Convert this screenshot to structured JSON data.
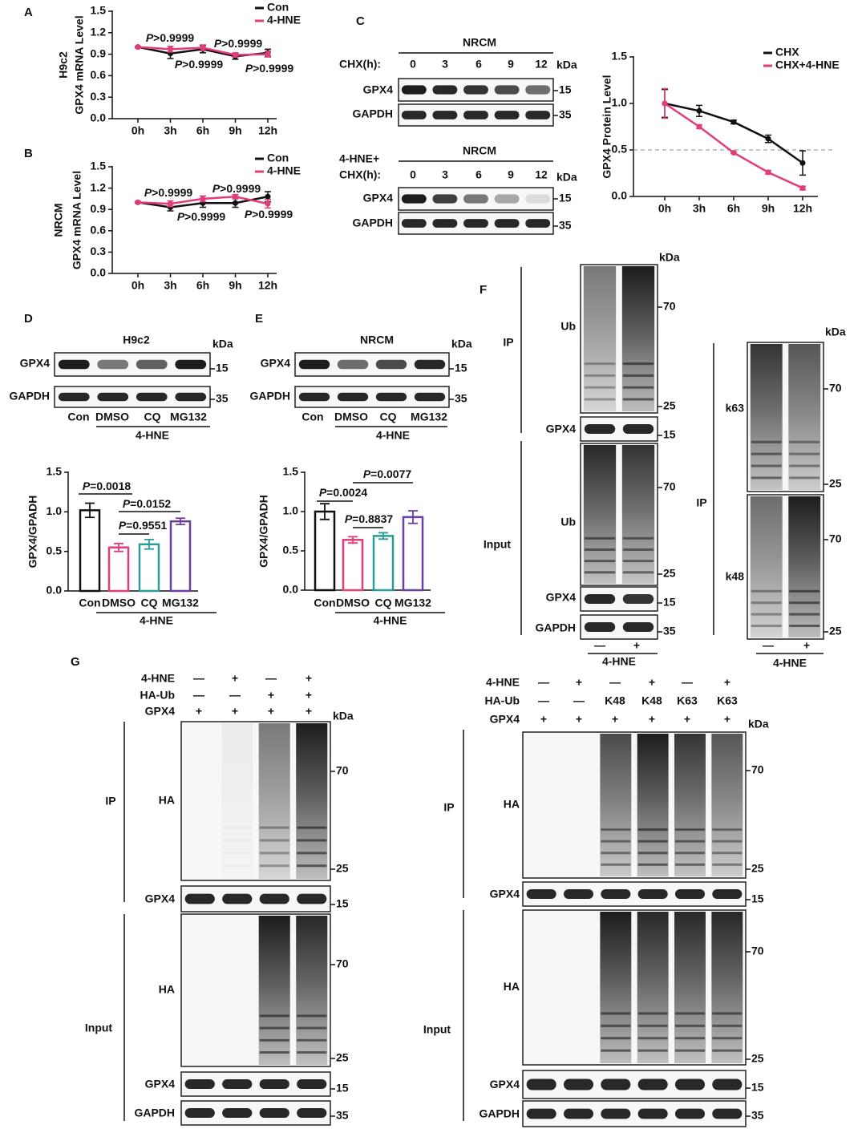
{
  "chart_data": [
    {
      "type": "line",
      "panel": "A",
      "ylabel": [
        "H9c2",
        "GPX4 mRNA Level"
      ],
      "categories": [
        "0h",
        "3h",
        "6h",
        "9h",
        "12h"
      ],
      "series": [
        {
          "name": "Con",
          "color": "#111111",
          "values": [
            1.0,
            0.91,
            0.97,
            0.87,
            0.92
          ],
          "errors": [
            0.01,
            0.07,
            0.05,
            0.04,
            0.05
          ]
        },
        {
          "name": "4-HNE",
          "color": "#e23c7b",
          "values": [
            1.0,
            0.97,
            0.99,
            0.89,
            0.9
          ],
          "errors": [
            0.01,
            0.04,
            0.04,
            0.03,
            0.04
          ]
        }
      ],
      "ylim": [
        0,
        1.5
      ],
      "yticks": [
        {
          "value": 0,
          "label": "0.0"
        },
        0.3,
        0.6,
        0.9,
        1.2,
        1.5
      ],
      "annotations": [
        "P>0.9999",
        "P>0.9999",
        "P>0.9999",
        "P>0.9999"
      ]
    },
    {
      "type": "line",
      "panel": "B",
      "ylabel": [
        "NRCM",
        "GPX4 mRNA Level"
      ],
      "categories": [
        "0h",
        "3h",
        "6h",
        "9h",
        "12h"
      ],
      "series": [
        {
          "name": "Con",
          "color": "#111111",
          "values": [
            1.0,
            0.93,
            0.99,
            0.99,
            1.08
          ],
          "errors": [
            0.01,
            0.05,
            0.06,
            0.06,
            0.07
          ]
        },
        {
          "name": "4-HNE",
          "color": "#e23c7b",
          "values": [
            1.0,
            0.98,
            1.05,
            1.08,
            0.98
          ],
          "errors": [
            0.01,
            0.04,
            0.04,
            0.03,
            0.06
          ]
        }
      ],
      "ylim": [
        0,
        1.5
      ],
      "yticks": [
        {
          "value": 0,
          "label": "0.0"
        },
        0.3,
        0.6,
        0.9,
        1.2,
        1.5
      ],
      "annotations": [
        "P>0.9999",
        "P>0.9999",
        "P>0.9999",
        "P>0.9999"
      ]
    },
    {
      "type": "line",
      "ylabel": [
        "GPX4 Protein Level"
      ],
      "categories": [
        "0h",
        "3h",
        "6h",
        "9h",
        "12h"
      ],
      "series": [
        {
          "name": "CHX",
          "color": "#111111",
          "values": [
            1.0,
            0.92,
            0.8,
            0.62,
            0.36
          ],
          "errors": [
            0.15,
            0.06,
            0.02,
            0.04,
            0.13
          ]
        },
        {
          "name": "CHX+4-HNE",
          "color": "#e23c7b",
          "values": [
            1.0,
            0.75,
            0.47,
            0.26,
            0.09
          ],
          "errors": [
            0.16,
            0.02,
            0.01,
            0.02,
            0.02
          ]
        }
      ],
      "ylim": [
        0,
        1.5
      ],
      "yticks": [
        {
          "value": 0,
          "label": "0.0"
        },
        0.5,
        {
          "value": 1,
          "label": "1.0"
        },
        1.5
      ],
      "hline": 0.5
    },
    {
      "type": "bar",
      "ylabel": [
        "GPX4/GPADH"
      ],
      "categories": [
        "Con",
        "DMSO",
        "CQ",
        "MG132"
      ],
      "group_label": "4-HNE",
      "values": [
        1.02,
        0.55,
        0.59,
        0.88
      ],
      "errors": [
        0.09,
        0.05,
        0.06,
        0.04
      ],
      "colors": [
        "#111111",
        "#e23c7b",
        "#2a9d9a",
        "#6a3fa0"
      ],
      "ylim": [
        0,
        1.5
      ],
      "yticks": [
        {
          "value": 0,
          "label": "0.0"
        },
        0.5,
        {
          "value": 1,
          "label": "1.0"
        },
        1.5
      ],
      "annotations": [
        "P=0.0018",
        "P=0.0152",
        "P=0.9551"
      ]
    },
    {
      "type": "bar",
      "ylabel": [
        "GPX4/GPADH"
      ],
      "categories": [
        "Con",
        "DMSO",
        "CQ",
        "MG132"
      ],
      "group_label": "4-HNE",
      "values": [
        1.0,
        0.64,
        0.69,
        0.93
      ],
      "errors": [
        0.1,
        0.04,
        0.04,
        0.08
      ],
      "colors": [
        "#111111",
        "#e23c7b",
        "#2a9d9a",
        "#6a3fa0"
      ],
      "ylim": [
        0,
        1.5
      ],
      "yticks": [
        {
          "value": 0,
          "label": "0.0"
        },
        0.5,
        {
          "value": 1,
          "label": "1.0"
        },
        1.5
      ],
      "annotations": [
        "P=0.0024",
        "P=0.8837",
        "P=0.0077"
      ]
    }
  ],
  "blots": {
    "C": {
      "letter": "C",
      "title": "NRCM",
      "condition": "CHX(h):",
      "treatment": "4-HNE+",
      "lanes": [
        "0",
        "3",
        "6",
        "9",
        "12"
      ],
      "unit": "kDa",
      "rows": [
        "GPX4",
        "GAPDH"
      ],
      "markers": [
        "15",
        "35"
      ]
    },
    "D": {
      "letter": "D",
      "title": "H9c2",
      "unit": "kDa",
      "rows": [
        "GPX4",
        "GAPDH"
      ],
      "markers": [
        "15",
        "35"
      ],
      "lanes": [
        "Con",
        "DMSO",
        "CQ",
        "MG132"
      ],
      "treatment": "4-HNE"
    },
    "E": {
      "letter": "E",
      "title": "NRCM",
      "unit": "kDa",
      "rows": [
        "GPX4",
        "GAPDH"
      ],
      "markers": [
        "15",
        "35"
      ],
      "lanes": [
        "Con",
        "DMSO",
        "CQ",
        "MG132"
      ],
      "treatment": "4-HNE"
    },
    "F": {
      "letter": "F",
      "unit": "kDa",
      "groups": [
        "IP",
        "Input"
      ],
      "rows": [
        "Ub",
        "GPX4",
        "GAPDH",
        "k63",
        "k48"
      ],
      "markers": [
        "70",
        "25",
        "15",
        "35"
      ],
      "lanes": [
        "—",
        "+"
      ],
      "treatment": "4-HNE"
    },
    "G": {
      "letter": "G",
      "unit": "kDa",
      "groups": [
        "IP",
        "Input"
      ],
      "conditions": [
        "4-HNE",
        "HA-Ub",
        "GPX4"
      ],
      "rows": [
        "HA",
        "GPX4",
        "GAPDH"
      ],
      "markers": [
        "70",
        "25",
        "15",
        "35"
      ],
      "left_lanes": [
        [
          "—",
          "+",
          "—",
          "+"
        ],
        [
          "—",
          "—",
          "+",
          "+"
        ],
        [
          "+",
          "+",
          "+",
          "+"
        ]
      ],
      "right_lanes": [
        [
          "—",
          "+",
          "—",
          "+",
          "—",
          "+"
        ],
        [
          "—",
          "—",
          "K48",
          "K48",
          "K63",
          "K63"
        ],
        [
          "+",
          "+",
          "+",
          "+",
          "+",
          "+"
        ]
      ]
    }
  }
}
